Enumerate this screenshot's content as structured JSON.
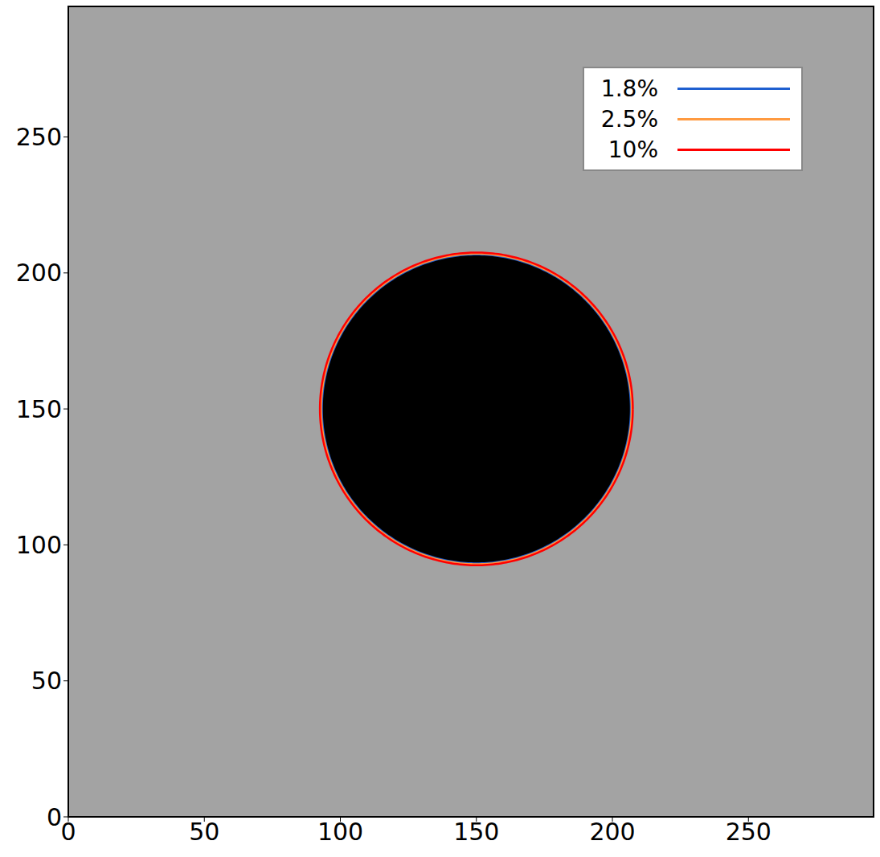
{
  "chart_data": {
    "type": "contour",
    "xlim": [
      0,
      296
    ],
    "ylim": [
      0,
      298
    ],
    "xticks": [
      0,
      50,
      100,
      150,
      200,
      250
    ],
    "yticks": [
      0,
      50,
      100,
      150,
      200,
      250
    ],
    "legend": "upper right",
    "disk": {
      "center": [
        150,
        150
      ],
      "radius": 57,
      "color": "#000000"
    },
    "series": [
      {
        "name": "1.8%",
        "color": "#1f5fd0",
        "center": [
          150,
          150
        ],
        "radius": 56.8
      },
      {
        "name": "2.5%",
        "color": "#ff9a40",
        "center": [
          150,
          150
        ],
        "radius": 57.1
      },
      {
        "name": "10%",
        "color": "#ff0000",
        "center": [
          150,
          150
        ],
        "radius": 57.5
      }
    ]
  }
}
